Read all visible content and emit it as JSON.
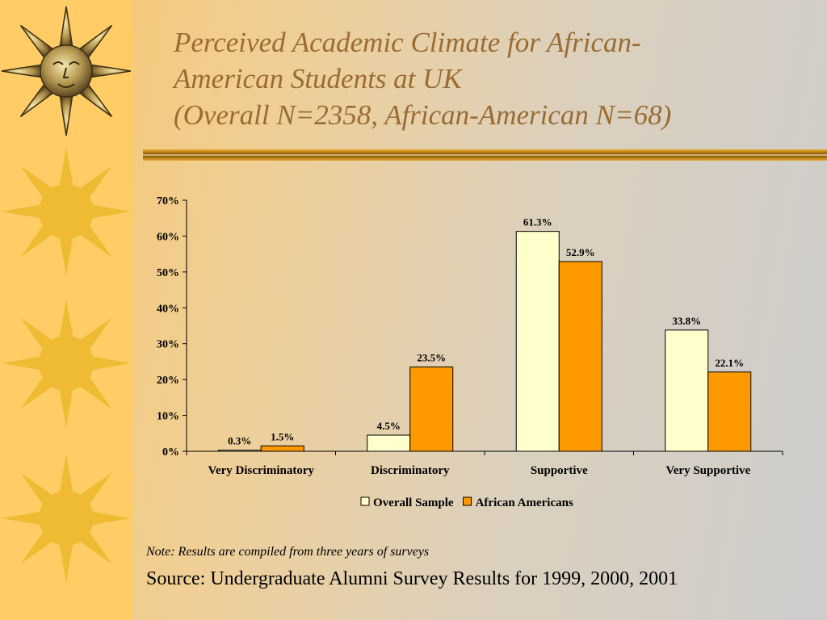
{
  "slide": {
    "title_lines": [
      "Perceived Academic Climate for African-",
      "American Students at UK",
      "(Overall N=2358, African-American N=68)"
    ],
    "note": "Note: Results are compiled from three years of surveys",
    "source": "Source: Undergraduate Alumni Survey Results for 1999, 2000, 2001"
  },
  "colors": {
    "sidebar": "#ffcc66",
    "sun_decor": "#eebb33",
    "title_text": "#9b6b32",
    "rule": "#c88a10"
  },
  "decor": {
    "sidebar_icons": [
      "face-sun-icon",
      "sun-icon",
      "sun-icon",
      "sun-icon"
    ]
  },
  "chart_data": {
    "type": "bar",
    "categories": [
      "Very Discriminatory",
      "Discriminatory",
      "Supportive",
      "Very Supportive"
    ],
    "series": [
      {
        "name": "Overall Sample",
        "values": [
          0.3,
          4.5,
          61.3,
          33.8
        ],
        "labels": [
          "0.3%",
          "4.5%",
          "61.3%",
          "33.8%"
        ],
        "color": "#ffffcc"
      },
      {
        "name": "African Americans",
        "values": [
          1.5,
          23.5,
          52.9,
          22.1
        ],
        "labels": [
          "1.5%",
          "23.5%",
          "52.9%",
          "22.1%"
        ],
        "color": "#ff9900"
      }
    ],
    "y_ticks": [
      "0%",
      "10%",
      "20%",
      "30%",
      "40%",
      "50%",
      "60%",
      "70%"
    ],
    "ylim": [
      0,
      70
    ],
    "grid": false,
    "legend_position": "bottom"
  }
}
